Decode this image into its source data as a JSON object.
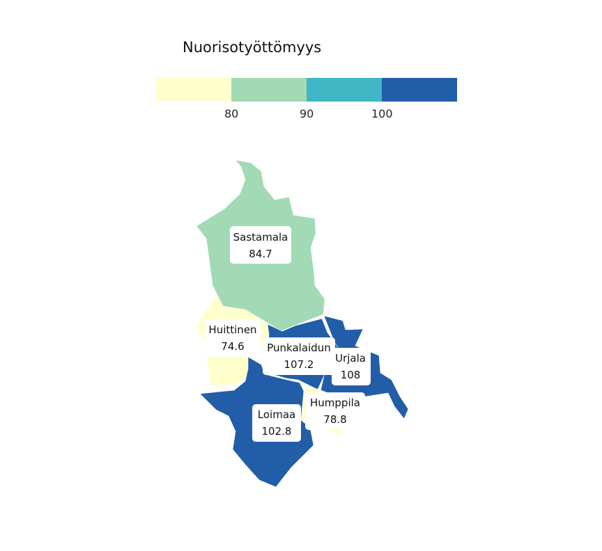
{
  "legend": {
    "title": "Nuorisotyöttömyys",
    "colors": [
      "#ffffcc",
      "#a1dab4",
      "#41b6c4",
      "#225ea8"
    ],
    "breaks": [
      "80",
      "90",
      "100"
    ]
  },
  "municipalities": [
    {
      "id": "sastamala",
      "name": "Sastamala",
      "value": "84.7",
      "color": "#a1dab4"
    },
    {
      "id": "huittinen",
      "name": "Huittinen",
      "value": "74.6",
      "color": "#ffffcc"
    },
    {
      "id": "punkalaidun",
      "name": "Punkalaidun",
      "value": "107.2",
      "color": "#225ea8"
    },
    {
      "id": "urjala",
      "name": "Urjala",
      "value": "108",
      "color": "#225ea8"
    },
    {
      "id": "humppila",
      "name": "Humppila",
      "value": "78.8",
      "color": "#ffffcc"
    },
    {
      "id": "loimaa",
      "name": "Loimaa",
      "value": "102.8",
      "color": "#225ea8"
    }
  ]
}
